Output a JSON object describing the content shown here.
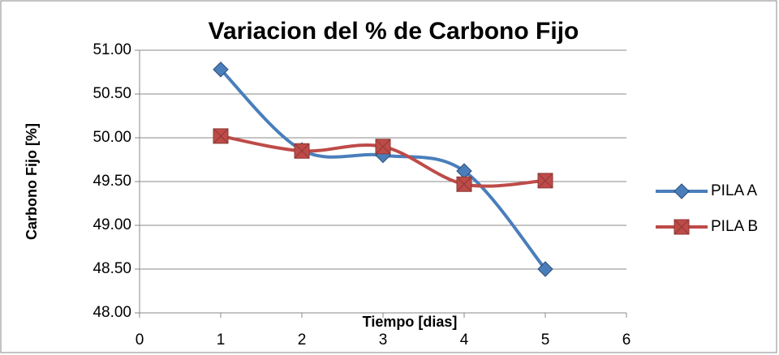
{
  "chart_data": {
    "type": "line",
    "title": "Variacion del % de Carbono Fijo",
    "x_label": "Tiempo [dias]",
    "y_label": "Carbono Fijo [%]",
    "xlim": [
      0,
      6
    ],
    "xticks": [
      0,
      1,
      2,
      3,
      4,
      5,
      6
    ],
    "ylim": [
      48,
      51
    ],
    "yticks": [
      {
        "value": 48,
        "label": "48.00"
      },
      {
        "value": 48.5,
        "label": "48.50"
      },
      {
        "value": 49,
        "label": "49.00"
      },
      {
        "value": 49.5,
        "label": "49.50"
      },
      {
        "value": 50,
        "label": "50.00"
      },
      {
        "value": 50.5,
        "label": "50.50"
      },
      {
        "value": 51,
        "label": "51.00"
      }
    ],
    "grid": true,
    "legend": "right",
    "x": [
      1,
      2,
      3,
      4,
      5
    ],
    "series": [
      {
        "name": "PILA A",
        "color": "#4a7ebb",
        "marker": "diamond",
        "values": [
          50.78,
          49.86,
          49.8,
          49.62,
          48.5
        ]
      },
      {
        "name": "PILA B",
        "color": "#be4b48",
        "marker": "square",
        "values": [
          50.02,
          49.85,
          49.9,
          49.47,
          49.51
        ]
      }
    ]
  }
}
